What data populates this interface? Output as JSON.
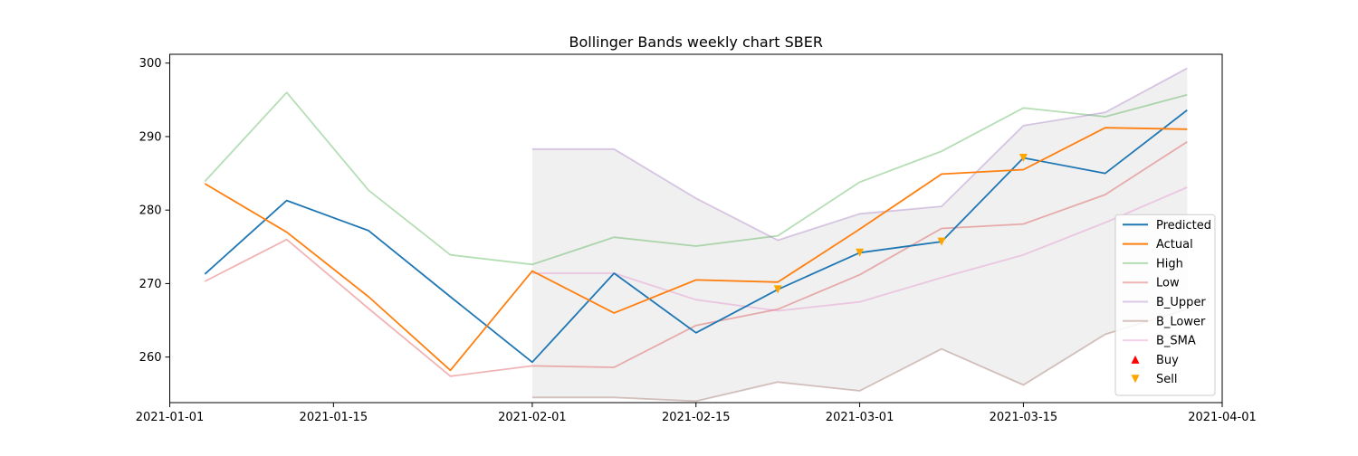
{
  "chart_data": {
    "type": "line",
    "title": "Bollinger Bands weekly chart SBER",
    "xlabel": "",
    "ylabel": "",
    "x_axis": {
      "type": "date",
      "range": [
        "2021-01-01",
        "2021-04-01"
      ],
      "ticks": [
        "2021-01-01",
        "2021-01-15",
        "2021-02-01",
        "2021-02-15",
        "2021-03-01",
        "2021-03-15",
        "2021-04-01"
      ]
    },
    "y_axis": {
      "range": [
        253.8,
        301.2
      ],
      "ticks": [
        260,
        270,
        280,
        290,
        300
      ]
    },
    "grid": false,
    "legend_position": "lower-right",
    "dates": [
      "2021-01-04",
      "2021-01-11",
      "2021-01-18",
      "2021-01-25",
      "2021-02-01",
      "2021-02-08",
      "2021-02-15",
      "2021-02-22",
      "2021-03-01",
      "2021-03-08",
      "2021-03-15",
      "2021-03-22",
      "2021-03-29"
    ],
    "band_fill": {
      "from": "2021-02-01",
      "color": "#f0f0f0"
    },
    "series": [
      {
        "name": "Predicted",
        "color": "#1f77b4",
        "opacity": 1.0,
        "values": [
          271.3,
          281.3,
          277.2,
          268.2,
          259.3,
          271.4,
          263.3,
          269.2,
          274.2,
          275.7,
          287.1,
          285.0,
          293.6
        ]
      },
      {
        "name": "Actual",
        "color": "#ff7f0e",
        "opacity": 1.0,
        "values": [
          283.6,
          277.0,
          268.2,
          258.2,
          271.7,
          266.0,
          270.5,
          270.2,
          277.4,
          284.9,
          285.5,
          291.2,
          291.0
        ]
      },
      {
        "name": "High",
        "color": "#2ca02c",
        "opacity": 0.35,
        "values": [
          283.9,
          296.0,
          282.7,
          273.9,
          272.6,
          276.3,
          275.1,
          276.5,
          283.8,
          288.0,
          293.9,
          292.7,
          295.7
        ]
      },
      {
        "name": "Low",
        "color": "#d62728",
        "opacity": 0.35,
        "values": [
          270.3,
          276.0,
          266.6,
          257.4,
          258.8,
          258.6,
          264.3,
          266.5,
          271.2,
          277.5,
          278.1,
          282.1,
          289.3
        ]
      },
      {
        "name": "B_Upper",
        "color": "#9467bd",
        "opacity": 0.35,
        "values": [
          null,
          null,
          null,
          null,
          288.3,
          288.3,
          281.6,
          275.9,
          279.5,
          280.5,
          291.5,
          293.3,
          299.3
        ]
      },
      {
        "name": "B_Lower",
        "color": "#8c564b",
        "opacity": 0.35,
        "values": [
          null,
          null,
          null,
          null,
          254.5,
          254.5,
          254.0,
          256.6,
          255.4,
          261.1,
          256.2,
          263.1,
          266.5
        ]
      },
      {
        "name": "B_SMA",
        "color": "#e377c2",
        "opacity": 0.35,
        "values": [
          null,
          null,
          null,
          null,
          271.4,
          271.4,
          267.8,
          266.3,
          267.5,
          270.8,
          273.9,
          278.3,
          283.1
        ]
      }
    ],
    "markers": [
      {
        "name": "Buy",
        "shape": "triangle-up",
        "color": "#ff0000",
        "points": []
      },
      {
        "name": "Sell",
        "shape": "triangle-down",
        "color": "#ffa500",
        "points": [
          {
            "x": "2021-02-22",
            "y": 269.2
          },
          {
            "x": "2021-03-01",
            "y": 274.2
          },
          {
            "x": "2021-03-08",
            "y": 275.7
          },
          {
            "x": "2021-03-15",
            "y": 287.1
          }
        ]
      }
    ]
  }
}
